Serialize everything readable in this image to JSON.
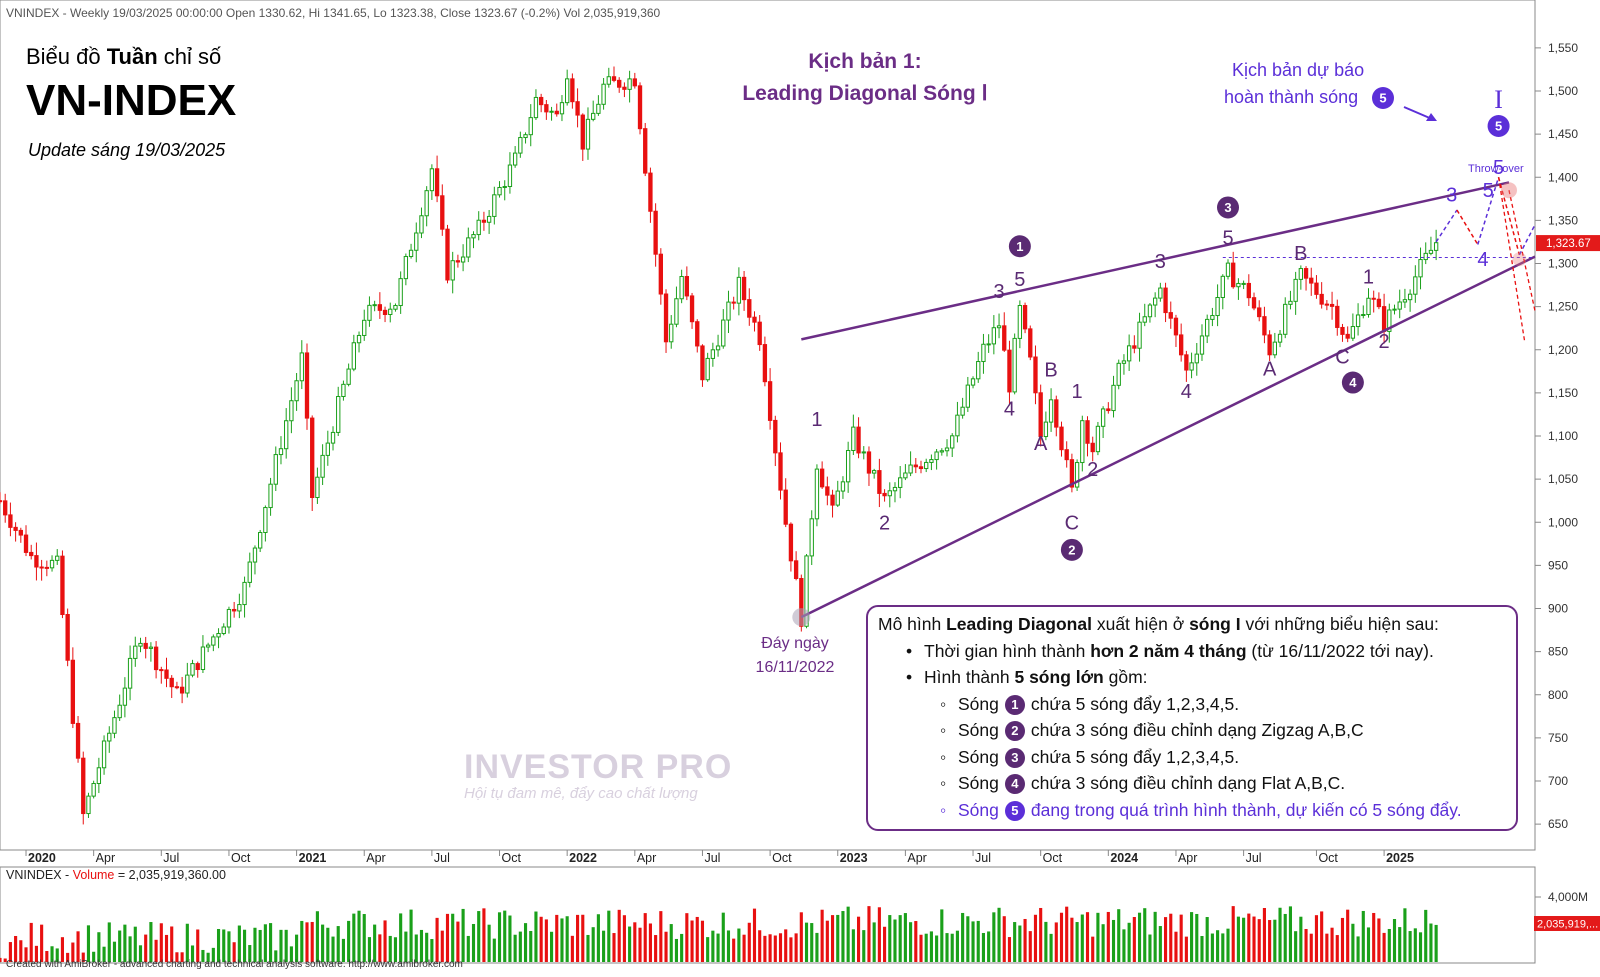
{
  "header": {
    "info": "VNINDEX - Weekly 19/03/2025 00:00:00 Open 1330.62, Hi 1341.65, Lo 1323.38, Close 1323.67 (-0.2%) Vol 2,035,919,360",
    "title_line1_pre": "Biểu đồ ",
    "title_line1_bold": "Tuần",
    "title_line1_post": " chỉ số",
    "title_main": "VN-INDEX",
    "update": "Update sáng 19/03/2025"
  },
  "scenario": {
    "line1": "Kịch bản 1:",
    "line2": "Leading Diagonal Sóng Ⅰ"
  },
  "forecast": {
    "line1": "Kịch bản dự báo",
    "line2": "hoàn thành sóng",
    "circle": "5",
    "roman": "I",
    "throw_over": "Throw-over"
  },
  "bottom_label": {
    "line1": "Đáy ngày",
    "line2": "16/11/2022"
  },
  "note": {
    "r1_pre": "Mô hình ",
    "r1_b1": "Leading Diagonal",
    "r1_mid": " xuất hiện ở ",
    "r1_b2": "sóng I",
    "r1_post": " với những biểu hiện sau:",
    "r2_pre": "Thời gian hình thành ",
    "r2_b": "hơn 2 năm 4 tháng",
    "r2_post": " (từ 16/11/2022 tới nay).",
    "r3_pre": "Hình thành ",
    "r3_b": "5 sóng lớn",
    "r3_post": " gồm:",
    "waves": [
      {
        "word": "Sóng",
        "num": "1",
        "text": "chứa 5 sóng đẩy 1,2,3,4,5."
      },
      {
        "word": "Sóng",
        "num": "2",
        "text": "chứa 3 sóng điều chỉnh dạng Zigzag A,B,C"
      },
      {
        "word": "Sóng",
        "num": "3",
        "text": "chứa 5 sóng đẩy 1,2,3,4,5."
      },
      {
        "word": "Sóng",
        "num": "4",
        "text": "chứa 3 sóng điều chỉnh dạng Flat A,B,C."
      },
      {
        "word": "Sóng",
        "num": "5",
        "text": "đang trong quá trình hình thành, dự kiến có 5 sóng đẩy."
      }
    ]
  },
  "watermark": {
    "name": "INVESTOR PRO",
    "slogan": "Hội tụ đam mê, đẩy cao chất lượng"
  },
  "volume_header": {
    "pre": "VNINDEX - ",
    "label": "Volume",
    "post": " = 2,035,919,360.00"
  },
  "footer": "Created with AmiBroker - advanced charting and technical analysis software. http://www.amibroker.com",
  "colors": {
    "up": "#1aa01a",
    "down": "#e81010",
    "wave": "#6b2d86",
    "forecast": "#5b2fd8",
    "badge": "#e31a1a"
  },
  "chart_data": {
    "type": "candlestick",
    "timeframe": "weekly",
    "y_ticks": [
      650,
      700,
      750,
      800,
      850,
      900,
      950,
      1000,
      1050,
      1100,
      1150,
      1200,
      1250,
      1300,
      1350,
      1400,
      1450,
      1500,
      1550
    ],
    "y_tick_labels": [
      "650",
      "700",
      "750",
      "800",
      "850",
      "900",
      "950",
      "1,000",
      "1,050",
      "1,100",
      "1,150",
      "1,200",
      "1,250",
      "1,300",
      "1,350",
      "1,400",
      "1,450",
      "1,500",
      "1,550"
    ],
    "ylim": [
      620,
      1580
    ],
    "x_range": [
      "2019-12-02",
      "2025-07-28"
    ],
    "x_ticks": [
      {
        "d": "2020-01-06",
        "label": "2020",
        "bold": true
      },
      {
        "d": "2020-04-06",
        "label": "Apr"
      },
      {
        "d": "2020-07-06",
        "label": "Jul"
      },
      {
        "d": "2020-10-05",
        "label": "Oct"
      },
      {
        "d": "2021-01-04",
        "label": "2021",
        "bold": true
      },
      {
        "d": "2021-04-05",
        "label": "Apr"
      },
      {
        "d": "2021-07-05",
        "label": "Jul"
      },
      {
        "d": "2021-10-04",
        "label": "Oct"
      },
      {
        "d": "2022-01-03",
        "label": "2022",
        "bold": true
      },
      {
        "d": "2022-04-04",
        "label": "Apr"
      },
      {
        "d": "2022-07-04",
        "label": "Jul"
      },
      {
        "d": "2022-10-03",
        "label": "Oct"
      },
      {
        "d": "2023-01-02",
        "label": "2023",
        "bold": true
      },
      {
        "d": "2023-04-03",
        "label": "Apr"
      },
      {
        "d": "2023-07-03",
        "label": "Jul"
      },
      {
        "d": "2023-10-02",
        "label": "Oct"
      },
      {
        "d": "2024-01-01",
        "label": "2024",
        "bold": true
      },
      {
        "d": "2024-04-01",
        "label": "Apr"
      },
      {
        "d": "2024-07-01",
        "label": "Jul"
      },
      {
        "d": "2024-10-07",
        "label": "Oct"
      },
      {
        "d": "2025-01-06",
        "label": "2025",
        "bold": true
      }
    ],
    "close_price": 1323.67,
    "close_label": "1,323.67",
    "close_line_value": 1307,
    "key_points": [
      {
        "d": "2019-12-02",
        "v": 1025
      },
      {
        "d": "2020-01-13",
        "v": 960
      },
      {
        "d": "2020-02-17",
        "v": 950
      },
      {
        "d": "2020-03-23",
        "v": 660
      },
      {
        "d": "2020-06-08",
        "v": 870
      },
      {
        "d": "2020-07-27",
        "v": 800
      },
      {
        "d": "2020-10-26",
        "v": 925
      },
      {
        "d": "2021-01-11",
        "v": 1190
      },
      {
        "d": "2021-01-25",
        "v": 1030
      },
      {
        "d": "2021-04-05",
        "v": 1240
      },
      {
        "d": "2021-05-17",
        "v": 1255
      },
      {
        "d": "2021-07-05",
        "v": 1410
      },
      {
        "d": "2021-07-26",
        "v": 1290
      },
      {
        "d": "2021-09-06",
        "v": 1340
      },
      {
        "d": "2021-10-25",
        "v": 1420
      },
      {
        "d": "2021-11-22",
        "v": 1490
      },
      {
        "d": "2021-12-20",
        "v": 1470
      },
      {
        "d": "2022-01-03",
        "v": 1525
      },
      {
        "d": "2022-01-24",
        "v": 1440
      },
      {
        "d": "2022-02-21",
        "v": 1505
      },
      {
        "d": "2022-04-04",
        "v": 1515
      },
      {
        "d": "2022-05-16",
        "v": 1210
      },
      {
        "d": "2022-06-06",
        "v": 1285
      },
      {
        "d": "2022-07-04",
        "v": 1170
      },
      {
        "d": "2022-08-22",
        "v": 1275
      },
      {
        "d": "2022-09-19",
        "v": 1215
      },
      {
        "d": "2022-10-24",
        "v": 1000
      },
      {
        "d": "2022-11-14",
        "v": 890
      },
      {
        "d": "2022-12-05",
        "v": 1070
      },
      {
        "d": "2022-12-26",
        "v": 1010
      },
      {
        "d": "2023-01-23",
        "v": 1100
      },
      {
        "d": "2023-03-06",
        "v": 1025
      },
      {
        "d": "2023-04-10",
        "v": 1060
      },
      {
        "d": "2023-06-05",
        "v": 1100
      },
      {
        "d": "2023-07-17",
        "v": 1200
      },
      {
        "d": "2023-08-07",
        "v": 1230
      },
      {
        "d": "2023-08-21",
        "v": 1160
      },
      {
        "d": "2023-09-04",
        "v": 1245
      },
      {
        "d": "2023-09-18",
        "v": 1185
      },
      {
        "d": "2023-10-02",
        "v": 1100
      },
      {
        "d": "2023-10-16",
        "v": 1150
      },
      {
        "d": "2023-11-13",
        "v": 1035
      },
      {
        "d": "2023-11-27",
        "v": 1120
      },
      {
        "d": "2023-12-11",
        "v": 1085
      },
      {
        "d": "2024-01-15",
        "v": 1175
      },
      {
        "d": "2024-03-11",
        "v": 1270
      },
      {
        "d": "2024-04-15",
        "v": 1175
      },
      {
        "d": "2024-06-10",
        "v": 1290
      },
      {
        "d": "2024-07-08",
        "v": 1265
      },
      {
        "d": "2024-08-05",
        "v": 1200
      },
      {
        "d": "2024-09-16",
        "v": 1285
      },
      {
        "d": "2024-10-28",
        "v": 1250
      },
      {
        "d": "2024-11-18",
        "v": 1210
      },
      {
        "d": "2024-12-16",
        "v": 1265
      },
      {
        "d": "2025-01-06",
        "v": 1230
      },
      {
        "d": "2025-02-10",
        "v": 1275
      },
      {
        "d": "2025-03-17",
        "v": 1325
      }
    ],
    "trendlines": [
      {
        "from": {
          "d": "2022-11-14",
          "v": 890
        },
        "to": {
          "d": "2025-07-28",
          "v": 1308
        }
      },
      {
        "from": {
          "d": "2022-11-14",
          "v": 1212
        },
        "to": {
          "d": "2025-06-23",
          "v": 1394
        }
      }
    ],
    "wave_labels": [
      {
        "d": "2022-12-05",
        "v": 1120,
        "t": "1"
      },
      {
        "d": "2023-03-06",
        "v": 1000,
        "t": "2"
      },
      {
        "d": "2023-08-07",
        "v": 1268,
        "t": "3"
      },
      {
        "d": "2023-08-21",
        "v": 1132,
        "t": "4"
      },
      {
        "d": "2023-09-04",
        "v": 1282,
        "t": "5"
      },
      {
        "d": "2023-09-04",
        "v": 1320,
        "t": "1",
        "circle": true
      },
      {
        "d": "2023-10-02",
        "v": 1092,
        "t": "A"
      },
      {
        "d": "2023-10-16",
        "v": 1177,
        "t": "B"
      },
      {
        "d": "2023-11-13",
        "v": 1000,
        "t": "C"
      },
      {
        "d": "2023-11-13",
        "v": 968,
        "t": "2",
        "circle": true
      },
      {
        "d": "2023-11-20",
        "v": 1152,
        "t": "1"
      },
      {
        "d": "2023-12-11",
        "v": 1062,
        "t": "2"
      },
      {
        "d": "2024-03-11",
        "v": 1303,
        "t": "3"
      },
      {
        "d": "2024-04-15",
        "v": 1152,
        "t": "4"
      },
      {
        "d": "2024-06-10",
        "v": 1330,
        "t": "5"
      },
      {
        "d": "2024-06-10",
        "v": 1365,
        "t": "3",
        "circle": true
      },
      {
        "d": "2024-08-05",
        "v": 1178,
        "t": "A"
      },
      {
        "d": "2024-09-16",
        "v": 1312,
        "t": "B"
      },
      {
        "d": "2024-11-11",
        "v": 1192,
        "t": "C"
      },
      {
        "d": "2024-11-25",
        "v": 1162,
        "t": "4",
        "circle": true
      },
      {
        "d": "2024-12-16",
        "v": 1285,
        "t": "1"
      },
      {
        "d": "2025-01-06",
        "v": 1210,
        "t": "2"
      }
    ],
    "forecast_path": [
      {
        "d": "2025-03-17",
        "v": 1325
      },
      {
        "d": "2025-04-14",
        "v": 1362
      },
      {
        "d": "2025-05-12",
        "v": 1322
      },
      {
        "d": "2025-06-09",
        "v": 1400
      },
      {
        "d": "2025-07-07",
        "v": 1310
      },
      {
        "d": "2025-07-28",
        "v": 1345
      }
    ],
    "forecast_labels": [
      {
        "d": "2025-04-07",
        "v": 1380,
        "t": "3"
      },
      {
        "d": "2025-05-19",
        "v": 1305,
        "t": "4"
      },
      {
        "d": "2025-05-26",
        "v": 1385,
        "t": "5"
      },
      {
        "d": "2025-06-09",
        "v": 1412,
        "t": "5"
      }
    ],
    "volume": {
      "current": 2035919360,
      "tick_label": "4,000M",
      "badge": "2,035,919,..."
    }
  }
}
